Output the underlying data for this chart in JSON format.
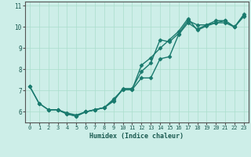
{
  "title": "",
  "xlabel": "Humidex (Indice chaleur)",
  "ylabel": "",
  "bg_color": "#cdeee8",
  "line_color": "#1a7a6e",
  "grid_color": "#aaddcc",
  "xlim": [
    -0.5,
    23.5
  ],
  "ylim": [
    5.5,
    11.2
  ],
  "yticks": [
    6,
    7,
    8,
    9,
    10,
    11
  ],
  "xticks": [
    0,
    1,
    2,
    3,
    4,
    5,
    6,
    7,
    8,
    9,
    10,
    11,
    12,
    13,
    14,
    15,
    16,
    17,
    18,
    19,
    20,
    21,
    22,
    23
  ],
  "line1_x": [
    0,
    1,
    2,
    3,
    4,
    5,
    6,
    7,
    8,
    9,
    10,
    11,
    12,
    13,
    14,
    15,
    16,
    17,
    18,
    19,
    20,
    21,
    22,
    23
  ],
  "line1_y": [
    7.2,
    6.4,
    6.1,
    6.1,
    5.9,
    5.8,
    6.0,
    6.1,
    6.2,
    6.5,
    7.1,
    7.1,
    7.9,
    8.3,
    9.4,
    9.3,
    9.7,
    10.3,
    10.1,
    10.1,
    10.2,
    10.2,
    10.0,
    10.5
  ],
  "line2_x": [
    0,
    1,
    2,
    3,
    4,
    5,
    6,
    7,
    8,
    9,
    10,
    11,
    12,
    13,
    14,
    15,
    16,
    17,
    18,
    19,
    20,
    21,
    22,
    23
  ],
  "line2_y": [
    7.2,
    6.4,
    6.1,
    6.1,
    5.9,
    5.8,
    6.0,
    6.1,
    6.2,
    6.6,
    7.05,
    7.05,
    8.2,
    8.55,
    9.0,
    9.4,
    9.8,
    10.4,
    9.85,
    10.05,
    10.2,
    10.3,
    10.0,
    10.6
  ],
  "line3_x": [
    2,
    3,
    4,
    5,
    6,
    7,
    8,
    9,
    10,
    11,
    12,
    13,
    14,
    15,
    16,
    17,
    18,
    19,
    20,
    21,
    22,
    23
  ],
  "line3_y": [
    6.1,
    6.1,
    5.95,
    5.85,
    6.0,
    6.1,
    6.2,
    6.55,
    7.05,
    7.05,
    7.6,
    7.6,
    8.5,
    8.6,
    9.65,
    10.2,
    9.9,
    10.1,
    10.3,
    10.3,
    10.0,
    10.55
  ],
  "marker": "D",
  "markersize": 2.5,
  "linewidth": 1.0,
  "tick_fontsize": 5.0,
  "xlabel_fontsize": 6.0
}
